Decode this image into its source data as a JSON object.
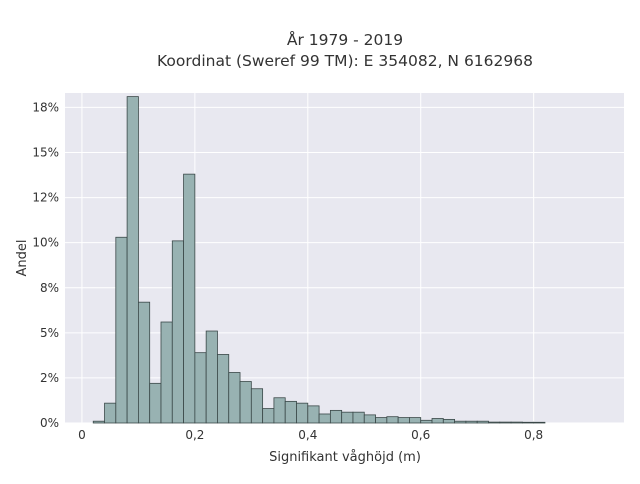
{
  "chart_data": {
    "type": "bar",
    "title_lines": [
      "År 1979 - 2019",
      "Koordinat (Sweref 99 TM): E 354082, N 6162968"
    ],
    "xlabel": "Signifikant våghöjd (m)",
    "ylabel": "Andel",
    "xlim": [
      -0.03,
      0.96
    ],
    "ylim": [
      0,
      0.183
    ],
    "x_ticks": [
      0,
      0.2,
      0.4,
      0.6,
      0.8
    ],
    "x_tick_labels": [
      "0",
      "0,2",
      "0,4",
      "0,6",
      "0,8"
    ],
    "y_ticks": [
      0,
      0.025,
      0.05,
      0.075,
      0.1,
      0.125,
      0.15,
      0.175
    ],
    "y_tick_labels": [
      "0%",
      "2%",
      "5%",
      "8%",
      "10%",
      "12%",
      "15%",
      "18%"
    ],
    "grid": true,
    "bin_width": 0.02,
    "bin_starts": [
      0.02,
      0.04,
      0.06,
      0.08,
      0.1,
      0.12,
      0.14,
      0.16,
      0.18,
      0.2,
      0.22,
      0.24,
      0.26,
      0.28,
      0.3,
      0.32,
      0.34,
      0.36,
      0.38,
      0.4,
      0.42,
      0.44,
      0.46,
      0.48,
      0.5,
      0.52,
      0.54,
      0.56,
      0.58,
      0.6,
      0.62,
      0.64,
      0.66,
      0.68,
      0.7,
      0.72,
      0.74,
      0.76,
      0.78,
      0.8
    ],
    "values": [
      0.001,
      0.011,
      0.103,
      0.181,
      0.067,
      0.022,
      0.056,
      0.101,
      0.138,
      0.039,
      0.051,
      0.038,
      0.028,
      0.023,
      0.019,
      0.008,
      0.014,
      0.012,
      0.011,
      0.0095,
      0.005,
      0.007,
      0.006,
      0.006,
      0.0045,
      0.003,
      0.0035,
      0.003,
      0.003,
      0.0015,
      0.0025,
      0.002,
      0.001,
      0.001,
      0.001,
      0.0005,
      0.0005,
      0.0005,
      0.0004,
      0.0004
    ],
    "colors": {
      "bar_fill": "#98b2b2",
      "bar_stroke": "#3a4848",
      "plot_bg": "#e8e8f0",
      "grid": "#ffffff"
    }
  }
}
